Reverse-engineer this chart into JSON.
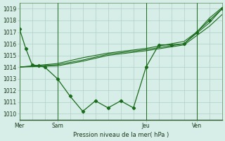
{
  "bg_color": "#d6ede8",
  "line_color": "#1a6b1a",
  "grid_color": "#b0d0c8",
  "title": "Pression niveau de la mer( hPa )",
  "ylim": [
    1009.5,
    1019.5
  ],
  "yticks": [
    1010,
    1011,
    1012,
    1013,
    1014,
    1015,
    1016,
    1017,
    1018,
    1019
  ],
  "day_labels": [
    "Mer",
    "Sam",
    "Jeu",
    "Ven"
  ],
  "day_positions": [
    0,
    3,
    10,
    14
  ],
  "vline_positions": [
    0,
    3,
    10,
    14
  ],
  "series1_x": [
    0,
    0.5,
    1.0,
    1.5,
    2.0,
    3.0,
    4.0,
    5.0,
    6.0,
    7.0,
    8.0,
    9.0,
    10.0,
    11.0,
    12.0,
    13.0,
    14.0,
    15.0,
    16.0
  ],
  "series1_y": [
    1017.3,
    1015.6,
    1014.2,
    1014.1,
    1014.0,
    1013.0,
    1011.5,
    1010.2,
    1011.1,
    1010.5,
    1011.1,
    1010.5,
    1014.0,
    1015.9,
    1015.9,
    1016.0,
    1017.0,
    1018.0,
    1019.0
  ],
  "series2_x": [
    0,
    3,
    5,
    7,
    10,
    13,
    14,
    15,
    16
  ],
  "series2_y": [
    1014.0,
    1014.1,
    1014.5,
    1015.0,
    1015.4,
    1015.9,
    1016.7,
    1017.5,
    1018.5
  ],
  "series3_x": [
    0,
    3,
    5,
    7,
    10,
    13,
    14,
    15,
    16
  ],
  "series3_y": [
    1014.0,
    1014.2,
    1014.6,
    1015.1,
    1015.5,
    1016.0,
    1016.9,
    1017.8,
    1019.0
  ],
  "series4_x": [
    0,
    3,
    5,
    7,
    10,
    13,
    14,
    15,
    16
  ],
  "series4_y": [
    1014.0,
    1014.3,
    1014.8,
    1015.2,
    1015.6,
    1016.2,
    1017.0,
    1018.2,
    1019.1
  ]
}
